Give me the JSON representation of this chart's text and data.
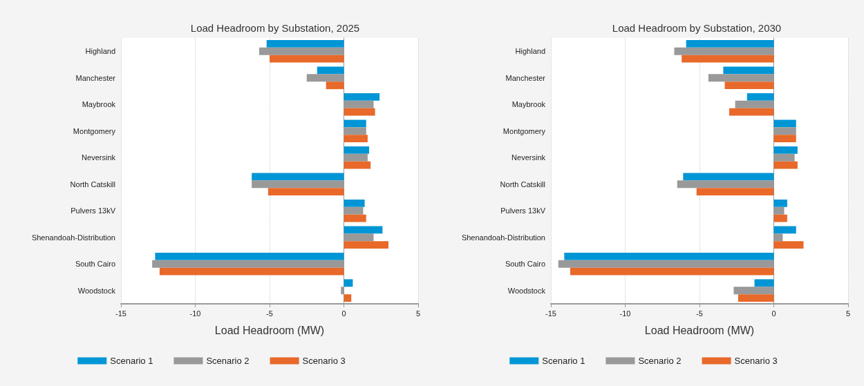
{
  "chart_data": [
    {
      "type": "bar",
      "orientation": "horizontal",
      "title": "Load Headroom by Substation, 2025",
      "xlabel": "Load Headroom (MW)",
      "categories": [
        "Highland",
        "Manchester",
        "Maybrook",
        "Montgomery",
        "Neversink",
        "North Catskill",
        "Pulvers 13kV",
        "Shenandoah-Distribution",
        "South Cairo",
        "Woodstock"
      ],
      "series": [
        {
          "name": "Scenario 1",
          "color": "#0096d6",
          "values": [
            -5.2,
            -1.8,
            2.4,
            1.5,
            1.7,
            -6.2,
            1.4,
            2.6,
            -12.7,
            0.6
          ]
        },
        {
          "name": "Scenario 2",
          "color": "#999999",
          "values": [
            -5.7,
            -2.5,
            2.0,
            1.5,
            1.6,
            -6.2,
            1.3,
            2.0,
            -12.9,
            -0.2
          ]
        },
        {
          "name": "Scenario 3",
          "color": "#e8692a",
          "values": [
            -5.0,
            -1.2,
            2.1,
            1.6,
            1.8,
            -5.1,
            1.5,
            3.0,
            -12.4,
            0.5
          ]
        }
      ],
      "xlim": [
        -15,
        5
      ],
      "xticks": [
        -15,
        -10,
        -5,
        0,
        5
      ],
      "grid": "x",
      "legend": "bottom"
    },
    {
      "type": "bar",
      "orientation": "horizontal",
      "title": "Load Headroom by Substation, 2030",
      "xlabel": "Load Headroom (MW)",
      "categories": [
        "Highland",
        "Manchester",
        "Maybrook",
        "Montgomery",
        "Neversink",
        "North Catskill",
        "Pulvers 13kV",
        "Shenandoah-Distribution",
        "South Cairo",
        "Woodstock"
      ],
      "series": [
        {
          "name": "Scenario 1",
          "color": "#0096d6",
          "values": [
            -5.9,
            -3.4,
            -1.8,
            1.5,
            1.6,
            -6.1,
            0.9,
            1.5,
            -14.1,
            -1.3
          ]
        },
        {
          "name": "Scenario 2",
          "color": "#999999",
          "values": [
            -6.7,
            -4.4,
            -2.6,
            1.5,
            1.4,
            -6.5,
            0.7,
            0.6,
            -14.5,
            -2.7
          ]
        },
        {
          "name": "Scenario 3",
          "color": "#e8692a",
          "values": [
            -6.2,
            -3.3,
            -3.0,
            1.5,
            1.6,
            -5.2,
            0.9,
            2.0,
            -13.7,
            -2.4
          ]
        }
      ],
      "xlim": [
        -15,
        5
      ],
      "xticks": [
        -15,
        -10,
        -5,
        0,
        5
      ],
      "grid": "x",
      "legend": "bottom"
    }
  ]
}
